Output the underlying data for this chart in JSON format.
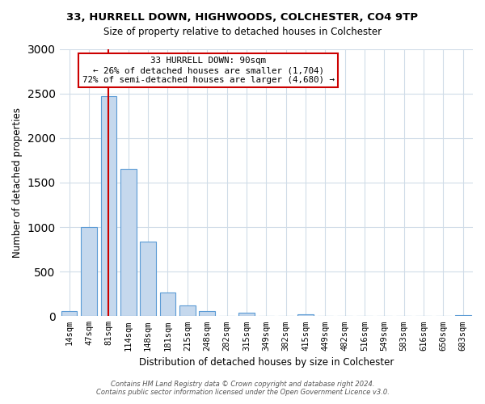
{
  "title": "33, HURRELL DOWN, HIGHWOODS, COLCHESTER, CO4 9TP",
  "subtitle": "Size of property relative to detached houses in Colchester",
  "xlabel": "Distribution of detached houses by size in Colchester",
  "ylabel": "Number of detached properties",
  "bar_labels": [
    "14sqm",
    "47sqm",
    "81sqm",
    "114sqm",
    "148sqm",
    "181sqm",
    "215sqm",
    "248sqm",
    "282sqm",
    "315sqm",
    "349sqm",
    "382sqm",
    "415sqm",
    "449sqm",
    "482sqm",
    "516sqm",
    "549sqm",
    "583sqm",
    "616sqm",
    "650sqm",
    "683sqm"
  ],
  "bar_values": [
    55,
    1000,
    2470,
    1650,
    840,
    270,
    125,
    55,
    0,
    40,
    0,
    0,
    20,
    0,
    0,
    0,
    0,
    0,
    0,
    0,
    15
  ],
  "bar_color": "#c5d8ed",
  "bar_edgecolor": "#5b9bd5",
  "vline_x": 2,
  "vline_color": "#cc0000",
  "annotation_box_text": "33 HURRELL DOWN: 90sqm\n← 26% of detached houses are smaller (1,704)\n72% of semi-detached houses are larger (4,680) →",
  "annotation_box_color": "#cc0000",
  "ylim": [
    0,
    3000
  ],
  "yticks": [
    0,
    500,
    1000,
    1500,
    2000,
    2500,
    3000
  ],
  "footer_line1": "Contains HM Land Registry data © Crown copyright and database right 2024.",
  "footer_line2": "Contains public sector information licensed under the Open Government Licence v3.0.",
  "bg_color": "#ffffff",
  "grid_color": "#d0dce8"
}
